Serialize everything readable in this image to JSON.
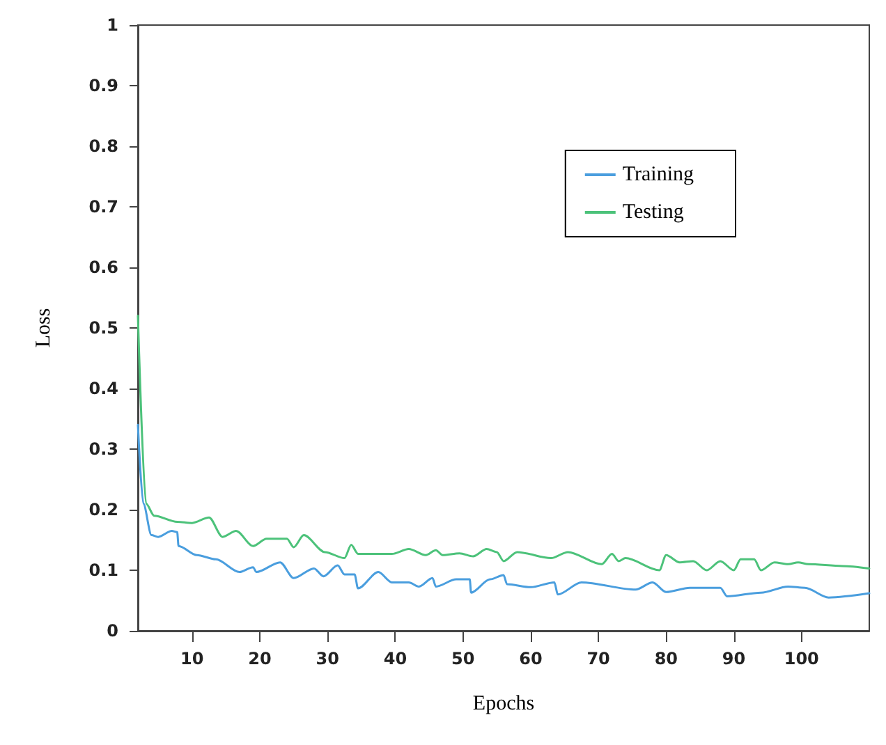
{
  "chart_data": {
    "type": "line",
    "xlabel": "Epochs",
    "ylabel": "Loss",
    "xlim": [
      2,
      110
    ],
    "ylim": [
      0,
      1
    ],
    "xticks": [
      10,
      20,
      30,
      40,
      50,
      60,
      70,
      80,
      90,
      100
    ],
    "yticks": [
      0,
      0.1,
      0.2,
      0.3,
      0.4,
      0.5,
      0.6,
      0.7,
      0.8,
      0.9,
      1
    ],
    "grid": false,
    "legend": "top right",
    "marker": "none",
    "line_style": "solid",
    "series": [
      {
        "name": "Training",
        "color": "#4a9ede",
        "x": [
          2,
          2.8,
          4,
          5,
          7,
          7.8,
          8,
          10.7,
          13.5,
          17,
          19,
          19.5,
          23,
          25,
          28,
          29.4,
          31.5,
          32.5,
          34,
          34.5,
          37.5,
          39.5,
          42,
          43.5,
          45.5,
          46,
          49,
          51,
          51.2,
          54,
          56,
          56.5,
          60,
          63.5,
          64,
          67.5,
          75.5,
          78,
          80,
          83.5,
          88,
          89,
          94,
          98,
          100.5,
          104,
          110
        ],
        "values": [
          0.34,
          0.21,
          0.158,
          0.155,
          0.165,
          0.163,
          0.14,
          0.125,
          0.118,
          0.097,
          0.105,
          0.097,
          0.113,
          0.087,
          0.103,
          0.09,
          0.108,
          0.093,
          0.093,
          0.07,
          0.097,
          0.08,
          0.08,
          0.073,
          0.087,
          0.073,
          0.085,
          0.085,
          0.063,
          0.085,
          0.092,
          0.077,
          0.072,
          0.08,
          0.06,
          0.08,
          0.068,
          0.08,
          0.064,
          0.071,
          0.071,
          0.057,
          0.063,
          0.073,
          0.071,
          0.055,
          0.062
        ]
      },
      {
        "name": "Testing",
        "color": "#4cc27a",
        "x": [
          2,
          3.2,
          4.4,
          7.8,
          10,
          12.5,
          14.5,
          16.5,
          19,
          21,
          24,
          25,
          26.5,
          29.6,
          32.5,
          33.5,
          34.5,
          39.5,
          42,
          44.5,
          46,
          47,
          49.5,
          51.5,
          53.5,
          55,
          56,
          58,
          63,
          65.5,
          70.5,
          72,
          73,
          74,
          79,
          80,
          82,
          84,
          86,
          88,
          90,
          91,
          93,
          94,
          96,
          98,
          99.5,
          101,
          106,
          110
        ],
        "values": [
          0.52,
          0.21,
          0.19,
          0.18,
          0.178,
          0.187,
          0.155,
          0.165,
          0.14,
          0.152,
          0.152,
          0.138,
          0.158,
          0.13,
          0.12,
          0.142,
          0.127,
          0.127,
          0.135,
          0.125,
          0.133,
          0.125,
          0.128,
          0.123,
          0.135,
          0.13,
          0.115,
          0.13,
          0.12,
          0.13,
          0.11,
          0.127,
          0.115,
          0.12,
          0.1,
          0.125,
          0.113,
          0.115,
          0.1,
          0.115,
          0.1,
          0.118,
          0.118,
          0.1,
          0.113,
          0.11,
          0.113,
          0.11,
          0.107,
          0.103
        ]
      }
    ]
  }
}
